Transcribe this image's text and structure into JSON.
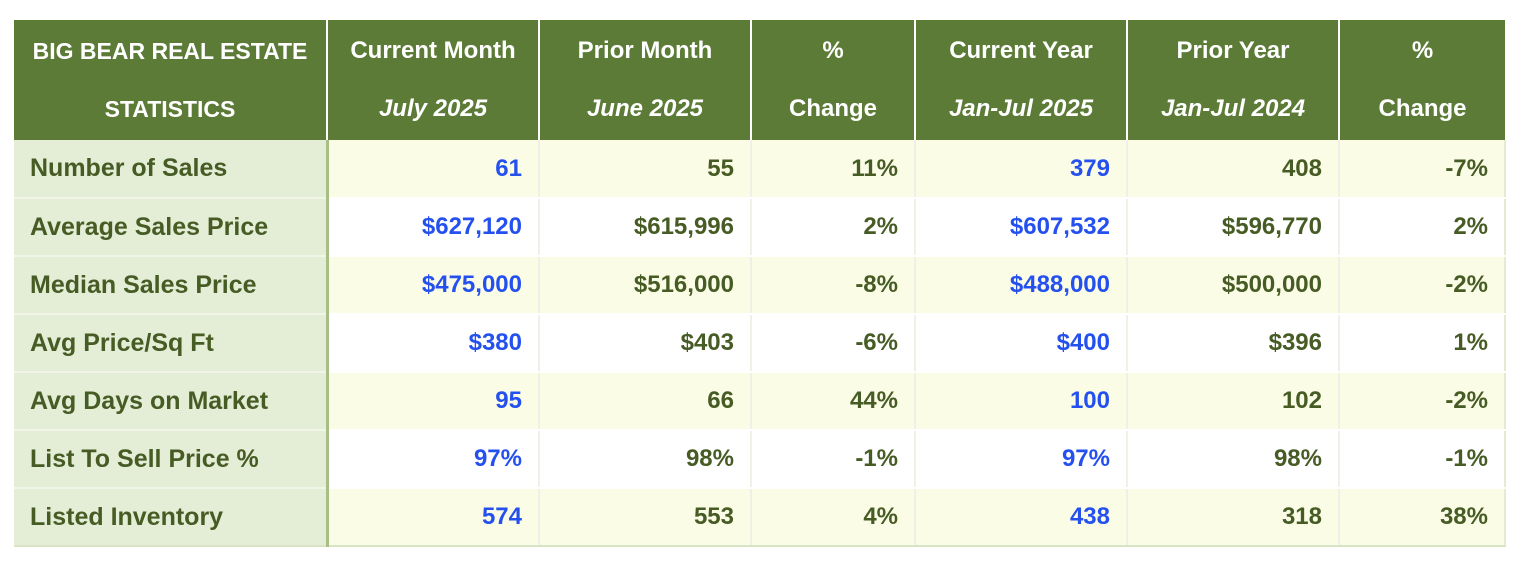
{
  "chart_data": {
    "type": "table",
    "title_line1": "BIG BEAR REAL ESTATE",
    "title_line2": "STATISTICS",
    "columns": [
      {
        "label": "Current Month",
        "sublabel": "July 2025",
        "italic_sub": true,
        "highlight": true
      },
      {
        "label": "Prior Month",
        "sublabel": "June 2025",
        "italic_sub": true,
        "highlight": false
      },
      {
        "label": "%",
        "sublabel": "Change",
        "italic_sub": false,
        "highlight": false
      },
      {
        "label": "Current Year",
        "sublabel": "Jan-Jul 2025",
        "italic_sub": true,
        "highlight": true
      },
      {
        "label": "Prior Year",
        "sublabel": "Jan-Jul 2024",
        "italic_sub": true,
        "highlight": false
      },
      {
        "label": "%",
        "sublabel": "Change",
        "italic_sub": false,
        "highlight": false
      }
    ],
    "rows": [
      {
        "label": "Number of Sales",
        "values": [
          "61",
          "55",
          "11%",
          "379",
          "408",
          "-7%"
        ]
      },
      {
        "label": "Average Sales Price",
        "values": [
          "$627,120",
          "$615,996",
          "2%",
          "$607,532",
          "$596,770",
          "2%"
        ]
      },
      {
        "label": "Median Sales Price",
        "values": [
          "$475,000",
          "$516,000",
          "-8%",
          "$488,000",
          "$500,000",
          "-2%"
        ]
      },
      {
        "label": "Avg Price/Sq Ft",
        "values": [
          "$380",
          "$403",
          "-6%",
          "$400",
          "$396",
          "1%"
        ]
      },
      {
        "label": "Avg Days on Market",
        "values": [
          "95",
          "66",
          "44%",
          "100",
          "102",
          "-2%"
        ]
      },
      {
        "label": "List To Sell Price %",
        "values": [
          "97%",
          "98%",
          "-1%",
          "97%",
          "98%",
          "-1%"
        ]
      },
      {
        "label": "Listed Inventory",
        "values": [
          "574",
          "553",
          "4%",
          "438",
          "318",
          "38%"
        ]
      }
    ]
  },
  "colors": {
    "header_bg": "#5c7b36",
    "header_text": "#ffffff",
    "label_bg": "#e4edd6",
    "label_text": "#465c24",
    "label_border": "#a9bd86",
    "row_even": "#fbfce6",
    "row_odd": "#ffffff",
    "value_text": "#465c24",
    "highlight": "#2450ef",
    "grid": "#f0f0e8"
  }
}
